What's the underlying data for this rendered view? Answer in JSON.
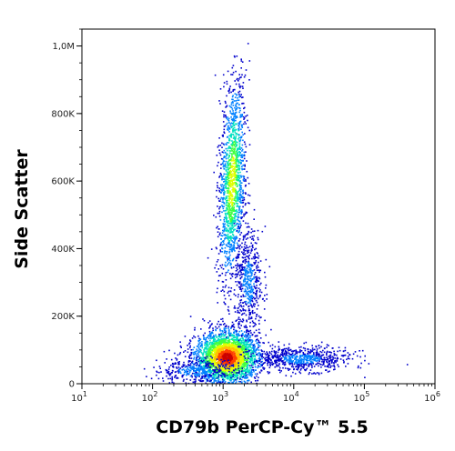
{
  "chart_data": {
    "type": "scatter",
    "subtype": "flow-cytometry-density-dot-plot",
    "xlabel": "CD79b PerCP-Cy™ 5.5",
    "ylabel": "Side Scatter",
    "x_scale": "log",
    "xlim": [
      10,
      1000000
    ],
    "x_ticks": [
      {
        "value": 10,
        "base": "10",
        "exp": "1"
      },
      {
        "value": 100,
        "base": "10",
        "exp": "2"
      },
      {
        "value": 1000,
        "base": "10",
        "exp": "3"
      },
      {
        "value": 10000,
        "base": "10",
        "exp": "4"
      },
      {
        "value": 100000,
        "base": "10",
        "exp": "5"
      },
      {
        "value": 1000000,
        "base": "10",
        "exp": "6"
      }
    ],
    "y_scale": "linear",
    "ylim": [
      0,
      1050000
    ],
    "y_ticks": [
      {
        "value": 0,
        "label": "0"
      },
      {
        "value": 200000,
        "label": "200K"
      },
      {
        "value": 400000,
        "label": "400K"
      },
      {
        "value": 600000,
        "label": "600K"
      },
      {
        "value": 800000,
        "label": "800K"
      },
      {
        "value": 1000000,
        "label": "1,0M"
      }
    ],
    "grid": false,
    "color_scale": [
      "#0000cc",
      "#0080ff",
      "#00e0c0",
      "#40ff40",
      "#e0ff00",
      "#ffc000",
      "#ff4000",
      "#cc0000"
    ],
    "populations": [
      {
        "name": "",
        "x_center_log10": 3.05,
        "y_center": 80000,
        "x_spread_log10": 0.22,
        "y_spread": 38000,
        "count": 2800,
        "density": "high"
      },
      {
        "name": "",
        "x_center_log10": 3.12,
        "y_center": 600000,
        "x_spread_log10": 0.09,
        "y_spread": 150000,
        "count": 1500,
        "tilt_log10_per_100k": 0.02,
        "density": "medium"
      },
      {
        "name": "",
        "x_center_log10": 3.35,
        "y_center": 300000,
        "x_spread_log10": 0.1,
        "y_spread": 80000,
        "count": 550,
        "density": "low"
      },
      {
        "name": "",
        "x_center_log10": 4.1,
        "y_center": 75000,
        "x_spread_log10": 0.35,
        "y_spread": 18000,
        "count": 700,
        "density": "low"
      },
      {
        "name": "",
        "x_center_log10": 2.6,
        "y_center": 40000,
        "x_spread_log10": 0.3,
        "y_spread": 20000,
        "count": 400,
        "density": "low"
      }
    ]
  }
}
